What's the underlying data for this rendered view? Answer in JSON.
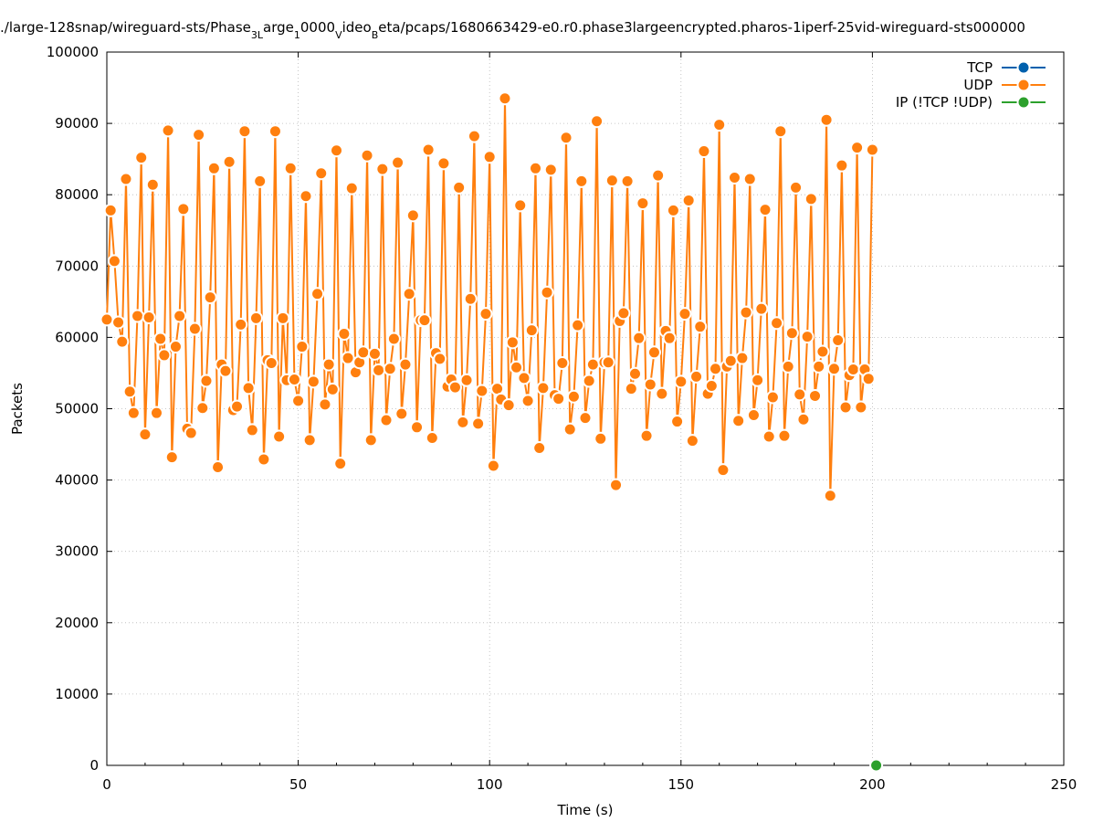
{
  "chart_data": {
    "type": "line",
    "title": "./large-128snap/wireguard-sts/Phase_3Large_10000_Video_Beta/pcaps/1680663429-e0.r0.phase3largeencrypted.pharos-1iperf-25vid-wireguard-sts000000",
    "title_parts": [
      {
        "text": "./large-128snap/wireguard-sts/Phase",
        "sub": false
      },
      {
        "text": "3L",
        "sub": true
      },
      {
        "text": "arge",
        "sub": false
      },
      {
        "text": "1",
        "sub": true
      },
      {
        "text": "0000",
        "sub": false
      },
      {
        "text": "V",
        "sub": true
      },
      {
        "text": "ideo",
        "sub": false
      },
      {
        "text": "B",
        "sub": true
      },
      {
        "text": "eta/pcaps/1680663429-e0.r0.phase3largeencrypted.pharos-1iperf-25vid-wireguard-sts000000",
        "sub": false
      }
    ],
    "xlabel": "Time (s)",
    "ylabel": "Packets",
    "xlim": [
      0,
      250
    ],
    "ylim": [
      0,
      100000
    ],
    "xticks": [
      0,
      50,
      100,
      150,
      200,
      250
    ],
    "yticks": [
      0,
      10000,
      20000,
      30000,
      40000,
      50000,
      60000,
      70000,
      80000,
      90000,
      100000
    ],
    "grid": true,
    "legend_position": "top-right",
    "series": [
      {
        "name": "TCP",
        "color": "#0060ad",
        "points": []
      },
      {
        "name": "UDP",
        "color": "#ff7f0e",
        "points": [
          [
            0,
            62500
          ],
          [
            1,
            77800
          ],
          [
            2,
            70700
          ],
          [
            3,
            62100
          ],
          [
            4,
            59400
          ],
          [
            5,
            82200
          ],
          [
            6,
            52400
          ],
          [
            7,
            49400
          ],
          [
            8,
            63000
          ],
          [
            9,
            85200
          ],
          [
            10,
            46400
          ],
          [
            11,
            62800
          ],
          [
            12,
            81400
          ],
          [
            13,
            49400
          ],
          [
            14,
            59800
          ],
          [
            15,
            57500
          ],
          [
            16,
            89000
          ],
          [
            17,
            43200
          ],
          [
            18,
            58700
          ],
          [
            19,
            63000
          ],
          [
            20,
            78000
          ],
          [
            21,
            47200
          ],
          [
            22,
            46600
          ],
          [
            23,
            61200
          ],
          [
            24,
            88400
          ],
          [
            25,
            50100
          ],
          [
            26,
            53900
          ],
          [
            27,
            65600
          ],
          [
            28,
            83700
          ],
          [
            29,
            41800
          ],
          [
            30,
            56200
          ],
          [
            31,
            55300
          ],
          [
            32,
            84600
          ],
          [
            33,
            49800
          ],
          [
            34,
            50300
          ],
          [
            35,
            61800
          ],
          [
            36,
            88900
          ],
          [
            37,
            52900
          ],
          [
            38,
            47000
          ],
          [
            39,
            62700
          ],
          [
            40,
            81900
          ],
          [
            41,
            42900
          ],
          [
            42,
            56800
          ],
          [
            43,
            56400
          ],
          [
            44,
            88900
          ],
          [
            45,
            46100
          ],
          [
            46,
            62700
          ],
          [
            47,
            54000
          ],
          [
            48,
            83700
          ],
          [
            49,
            54100
          ],
          [
            50,
            51100
          ],
          [
            51,
            58700
          ],
          [
            52,
            79800
          ],
          [
            53,
            45600
          ],
          [
            54,
            53800
          ],
          [
            55,
            66100
          ],
          [
            56,
            83000
          ],
          [
            57,
            50600
          ],
          [
            58,
            56200
          ],
          [
            59,
            52700
          ],
          [
            60,
            86200
          ],
          [
            61,
            42300
          ],
          [
            62,
            60500
          ],
          [
            63,
            57100
          ],
          [
            64,
            80900
          ],
          [
            65,
            55100
          ],
          [
            66,
            56500
          ],
          [
            67,
            57900
          ],
          [
            68,
            85500
          ],
          [
            69,
            45600
          ],
          [
            70,
            57700
          ],
          [
            71,
            55400
          ],
          [
            72,
            83600
          ],
          [
            73,
            48400
          ],
          [
            74,
            55600
          ],
          [
            75,
            59800
          ],
          [
            76,
            84500
          ],
          [
            77,
            49300
          ],
          [
            78,
            56200
          ],
          [
            79,
            66100
          ],
          [
            80,
            77100
          ],
          [
            81,
            47400
          ],
          [
            82,
            62400
          ],
          [
            83,
            62400
          ],
          [
            84,
            86300
          ],
          [
            85,
            45900
          ],
          [
            86,
            57800
          ],
          [
            87,
            57000
          ],
          [
            88,
            84400
          ],
          [
            89,
            53100
          ],
          [
            90,
            54100
          ],
          [
            91,
            53000
          ],
          [
            92,
            81000
          ],
          [
            93,
            48100
          ],
          [
            94,
            54000
          ],
          [
            95,
            65400
          ],
          [
            96,
            88200
          ],
          [
            97,
            47900
          ],
          [
            98,
            52500
          ],
          [
            99,
            63300
          ],
          [
            100,
            85300
          ],
          [
            101,
            42000
          ],
          [
            102,
            52800
          ],
          [
            103,
            51300
          ],
          [
            104,
            93500
          ],
          [
            105,
            50500
          ],
          [
            106,
            59300
          ],
          [
            107,
            55800
          ],
          [
            108,
            78500
          ],
          [
            109,
            54300
          ],
          [
            110,
            51100
          ],
          [
            111,
            61000
          ],
          [
            112,
            83700
          ],
          [
            113,
            44500
          ],
          [
            114,
            52900
          ],
          [
            115,
            66300
          ],
          [
            116,
            83500
          ],
          [
            117,
            51900
          ],
          [
            118,
            51400
          ],
          [
            119,
            56400
          ],
          [
            120,
            88000
          ],
          [
            121,
            47100
          ],
          [
            122,
            51700
          ],
          [
            123,
            61700
          ],
          [
            124,
            81900
          ],
          [
            125,
            48700
          ],
          [
            126,
            53900
          ],
          [
            127,
            56200
          ],
          [
            128,
            90300
          ],
          [
            129,
            45800
          ],
          [
            130,
            56500
          ],
          [
            131,
            56500
          ],
          [
            132,
            82000
          ],
          [
            133,
            39300
          ],
          [
            134,
            62300
          ],
          [
            135,
            63400
          ],
          [
            136,
            81900
          ],
          [
            137,
            52800
          ],
          [
            138,
            54900
          ],
          [
            139,
            59900
          ],
          [
            140,
            78800
          ],
          [
            141,
            46200
          ],
          [
            142,
            53400
          ],
          [
            143,
            57900
          ],
          [
            144,
            82700
          ],
          [
            145,
            52100
          ],
          [
            146,
            60900
          ],
          [
            147,
            59900
          ],
          [
            148,
            77800
          ],
          [
            149,
            48200
          ],
          [
            150,
            53800
          ],
          [
            151,
            63300
          ],
          [
            152,
            79200
          ],
          [
            153,
            45500
          ],
          [
            154,
            54500
          ],
          [
            155,
            61500
          ],
          [
            156,
            86100
          ],
          [
            157,
            52100
          ],
          [
            158,
            53200
          ],
          [
            159,
            55600
          ],
          [
            160,
            89800
          ],
          [
            161,
            41400
          ],
          [
            162,
            55900
          ],
          [
            163,
            56700
          ],
          [
            164,
            82400
          ],
          [
            165,
            48300
          ],
          [
            166,
            57100
          ],
          [
            167,
            63500
          ],
          [
            168,
            82200
          ],
          [
            169,
            49100
          ],
          [
            170,
            54000
          ],
          [
            171,
            64000
          ],
          [
            172,
            77900
          ],
          [
            173,
            46100
          ],
          [
            174,
            51600
          ],
          [
            175,
            62000
          ],
          [
            176,
            88900
          ],
          [
            177,
            46200
          ],
          [
            178,
            55900
          ],
          [
            179,
            60600
          ],
          [
            180,
            81000
          ],
          [
            181,
            52000
          ],
          [
            182,
            48500
          ],
          [
            183,
            60100
          ],
          [
            184,
            79400
          ],
          [
            185,
            51800
          ],
          [
            186,
            55900
          ],
          [
            187,
            58000
          ],
          [
            188,
            90500
          ],
          [
            189,
            37800
          ],
          [
            190,
            55600
          ],
          [
            191,
            59600
          ],
          [
            192,
            84100
          ],
          [
            193,
            50200
          ],
          [
            194,
            54700
          ],
          [
            195,
            55500
          ],
          [
            196,
            86600
          ],
          [
            197,
            50200
          ],
          [
            198,
            55500
          ],
          [
            199,
            54200
          ],
          [
            200,
            86300
          ]
        ]
      },
      {
        "name": "IP (!TCP  !UDP)",
        "color": "#2ca02c",
        "points": [
          [
            201,
            0
          ]
        ]
      }
    ]
  }
}
